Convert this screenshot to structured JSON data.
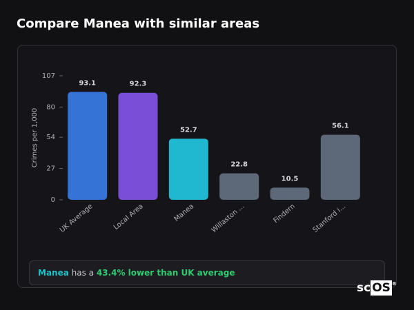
{
  "header": {
    "title": "Compare Manea with similar areas"
  },
  "chart_data": {
    "type": "bar",
    "y_label": "Crimes per 1,000",
    "categories": [
      "UK Average",
      "Local Area",
      "Manea",
      "Willaston ...",
      "Findern",
      "Stanford i..."
    ],
    "values": [
      93.1,
      92.3,
      52.7,
      22.8,
      10.5,
      56.1
    ],
    "colors": [
      "#3574d6",
      "#7a4ed6",
      "#1fb8d0",
      "#5d6878",
      "#5d6878",
      "#5d6878"
    ],
    "ylim": [
      0,
      107
    ],
    "yticks": [
      0,
      27,
      54,
      80,
      107
    ]
  },
  "summary": {
    "place": "Manea",
    "connector": "has a",
    "comparison": "43.4% lower than UK average"
  },
  "logo": {
    "prefix": "sc",
    "boxed": "OS",
    "mark": "®"
  }
}
